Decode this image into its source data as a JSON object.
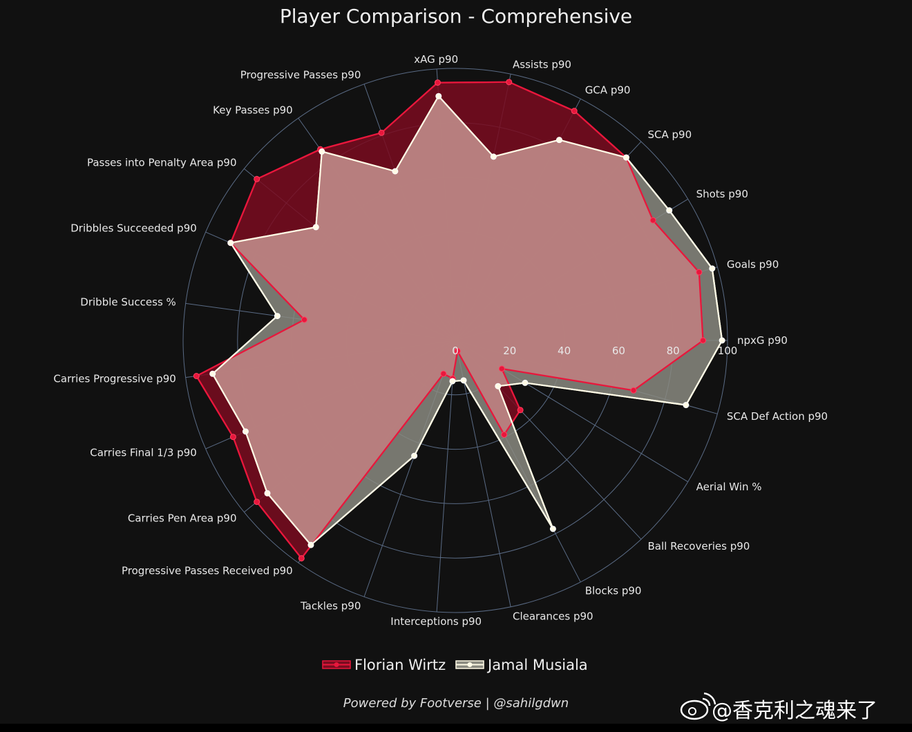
{
  "chart_data": {
    "type": "radar",
    "title": "Player Comparison - Comprehensive",
    "axes": [
      "npxG p90",
      "Goals p90",
      "Shots p90",
      "SCA p90",
      "GCA p90",
      "Assists p90",
      "xAG p90",
      "Progressive Passes p90",
      "Key Passes p90",
      "Passes into Penalty Area p90",
      "Dribbles Succeeded p90",
      "Dribble Success %",
      "Carries Progressive p90",
      "Carries Final 1/3 p90",
      "Carries Pen Area p90",
      "Progressive Passes Received p90",
      "Tackles p90",
      "Interceptions p90",
      "Clearances p90",
      "Blocks p90",
      "Ball Recoveries p90",
      "Aerial Win %",
      "SCA Def Action p90"
    ],
    "radial_ticks": [
      0,
      20,
      40,
      60,
      80,
      100
    ],
    "rlim": [
      0,
      100
    ],
    "series": [
      {
        "name": "Florian Wirtz",
        "color": "#e8173c",
        "fill": "#7a0c20",
        "values": [
          91,
          93,
          85,
          92,
          95,
          97,
          95,
          81,
          86,
          94,
          90,
          56,
          96,
          89,
          94,
          98,
          13,
          14,
          4,
          39,
          35,
          20,
          68
        ]
      },
      {
        "name": "Jamal Musiala",
        "color": "#fffbe6",
        "fill": "#8a8a80",
        "values": [
          98,
          98,
          92,
          92,
          83,
          69,
          90,
          66,
          85,
          66,
          90,
          66,
          90,
          84,
          89,
          92,
          45,
          15,
          15,
          78,
          23,
          30,
          88
        ]
      }
    ],
    "grid": true,
    "legend_position": "bottom-center",
    "background": "#111111",
    "grid_color": "#5a6b85"
  },
  "footer": {
    "credit": "Powered by Footverse | @sahilgdwn",
    "watermark": "@香克利之魂来了"
  }
}
